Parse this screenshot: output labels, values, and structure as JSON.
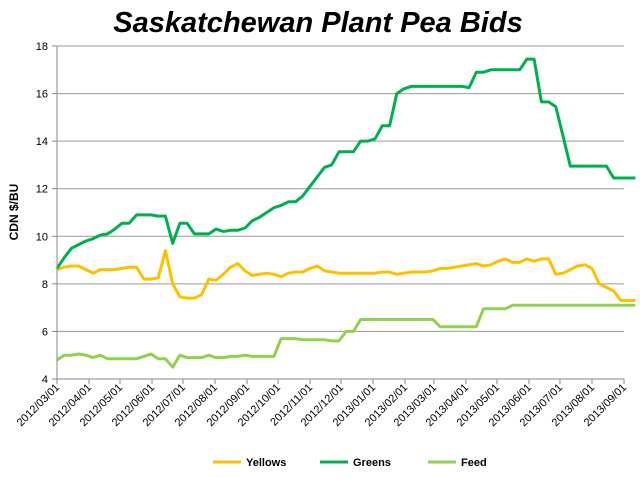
{
  "chart_data": {
    "type": "line",
    "title": "Saskatchewan Plant Pea Bids",
    "xlabel": "",
    "ylabel": "CDN $/BU",
    "ylim": [
      4,
      18
    ],
    "yticks": [
      "4",
      "6",
      "8",
      "10",
      "12",
      "14",
      "16",
      "18"
    ],
    "xticks": [
      "2012/03/01",
      "2012/04/01",
      "2012/05/01",
      "2012/06/01",
      "2012/07/01",
      "2012/08/01",
      "2012/09/01",
      "2012/10/01",
      "2012/11/01",
      "2012/12/01",
      "2013/01/01",
      "2013/02/01",
      "2013/03/01",
      "2013/04/01",
      "2013/05/01",
      "2013/06/01",
      "2013/07/01",
      "2013/08/01",
      "2013/09/01"
    ],
    "grid": "horizontal",
    "legend_position": "bottom",
    "series": [
      {
        "name": "Yellows",
        "color": "#FFC000",
        "points": [
          [
            "2012/03/01",
            8.6
          ],
          [
            "2012/03/08",
            8.7
          ],
          [
            "2012/03/15",
            8.75
          ],
          [
            "2012/03/22",
            8.75
          ],
          [
            "2012/03/29",
            8.6
          ],
          [
            "2012/04/05",
            8.45
          ],
          [
            "2012/04/12",
            8.6
          ],
          [
            "2012/04/19",
            8.6
          ],
          [
            "2012/04/26",
            8.6
          ],
          [
            "2012/05/03",
            8.65
          ],
          [
            "2012/05/10",
            8.7
          ],
          [
            "2012/05/17",
            8.7
          ],
          [
            "2012/05/24",
            8.2
          ],
          [
            "2012/05/31",
            8.2
          ],
          [
            "2012/06/07",
            8.25
          ],
          [
            "2012/06/14",
            9.4
          ],
          [
            "2012/06/21",
            8.0
          ],
          [
            "2012/06/28",
            7.45
          ],
          [
            "2012/07/05",
            7.4
          ],
          [
            "2012/07/12",
            7.4
          ],
          [
            "2012/07/19",
            7.55
          ],
          [
            "2012/07/26",
            8.2
          ],
          [
            "2012/08/02",
            8.15
          ],
          [
            "2012/08/09",
            8.4
          ],
          [
            "2012/08/16",
            8.7
          ],
          [
            "2012/08/23",
            8.85
          ],
          [
            "2012/08/30",
            8.55
          ],
          [
            "2012/09/06",
            8.35
          ],
          [
            "2012/09/13",
            8.4
          ],
          [
            "2012/09/20",
            8.45
          ],
          [
            "2012/09/27",
            8.4
          ],
          [
            "2012/10/04",
            8.3
          ],
          [
            "2012/10/11",
            8.45
          ],
          [
            "2012/10/18",
            8.5
          ],
          [
            "2012/10/25",
            8.5
          ],
          [
            "2012/11/01",
            8.65
          ],
          [
            "2012/11/08",
            8.75
          ],
          [
            "2012/11/15",
            8.55
          ],
          [
            "2012/11/22",
            8.5
          ],
          [
            "2012/11/29",
            8.45
          ],
          [
            "2012/12/06",
            8.45
          ],
          [
            "2012/12/13",
            8.45
          ],
          [
            "2012/12/20",
            8.45
          ],
          [
            "2012/12/27",
            8.45
          ],
          [
            "2013/01/03",
            8.45
          ],
          [
            "2013/01/10",
            8.5
          ],
          [
            "2013/01/17",
            8.5
          ],
          [
            "2013/01/24",
            8.4
          ],
          [
            "2013/01/31",
            8.45
          ],
          [
            "2013/02/07",
            8.5
          ],
          [
            "2013/02/14",
            8.5
          ],
          [
            "2013/02/21",
            8.5
          ],
          [
            "2013/02/28",
            8.55
          ],
          [
            "2013/03/07",
            8.65
          ],
          [
            "2013/03/14",
            8.65
          ],
          [
            "2013/03/21",
            8.7
          ],
          [
            "2013/03/28",
            8.75
          ],
          [
            "2013/04/04",
            8.8
          ],
          [
            "2013/04/11",
            8.85
          ],
          [
            "2013/04/18",
            8.75
          ],
          [
            "2013/04/25",
            8.8
          ],
          [
            "2013/05/02",
            8.95
          ],
          [
            "2013/05/09",
            9.05
          ],
          [
            "2013/05/16",
            8.9
          ],
          [
            "2013/05/23",
            8.9
          ],
          [
            "2013/05/30",
            9.05
          ],
          [
            "2013/06/06",
            8.95
          ],
          [
            "2013/06/13",
            9.05
          ],
          [
            "2013/06/20",
            9.05
          ],
          [
            "2013/06/27",
            8.4
          ],
          [
            "2013/07/04",
            8.45
          ],
          [
            "2013/07/11",
            8.6
          ],
          [
            "2013/07/18",
            8.75
          ],
          [
            "2013/07/25",
            8.8
          ],
          [
            "2013/08/01",
            8.65
          ],
          [
            "2013/08/08",
            8.0
          ],
          [
            "2013/08/15",
            7.85
          ],
          [
            "2013/08/22",
            7.7
          ],
          [
            "2013/08/29",
            7.3
          ],
          [
            "2013/09/05",
            7.3
          ],
          [
            "2013/09/12",
            7.3
          ]
        ]
      },
      {
        "name": "Greens",
        "color": "#00B050",
        "points": [
          [
            "2012/03/01",
            8.65
          ],
          [
            "2012/03/08",
            9.1
          ],
          [
            "2012/03/15",
            9.5
          ],
          [
            "2012/03/22",
            9.65
          ],
          [
            "2012/03/29",
            9.8
          ],
          [
            "2012/04/05",
            9.9
          ],
          [
            "2012/04/12",
            10.05
          ],
          [
            "2012/04/19",
            10.1
          ],
          [
            "2012/04/26",
            10.3
          ],
          [
            "2012/05/03",
            10.55
          ],
          [
            "2012/05/10",
            10.55
          ],
          [
            "2012/05/17",
            10.9
          ],
          [
            "2012/05/24",
            10.9
          ],
          [
            "2012/05/31",
            10.9
          ],
          [
            "2012/06/07",
            10.85
          ],
          [
            "2012/06/14",
            10.85
          ],
          [
            "2012/06/21",
            9.7
          ],
          [
            "2012/06/28",
            10.55
          ],
          [
            "2012/07/05",
            10.55
          ],
          [
            "2012/07/12",
            10.1
          ],
          [
            "2012/07/19",
            10.1
          ],
          [
            "2012/07/26",
            10.1
          ],
          [
            "2012/08/02",
            10.3
          ],
          [
            "2012/08/09",
            10.2
          ],
          [
            "2012/08/16",
            10.25
          ],
          [
            "2012/08/23",
            10.25
          ],
          [
            "2012/08/30",
            10.35
          ],
          [
            "2012/09/06",
            10.65
          ],
          [
            "2012/09/13",
            10.8
          ],
          [
            "2012/09/20",
            11.0
          ],
          [
            "2012/09/27",
            11.2
          ],
          [
            "2012/10/04",
            11.3
          ],
          [
            "2012/10/11",
            11.45
          ],
          [
            "2012/10/18",
            11.45
          ],
          [
            "2012/10/25",
            11.7
          ],
          [
            "2012/11/01",
            12.1
          ],
          [
            "2012/11/08",
            12.5
          ],
          [
            "2012/11/15",
            12.9
          ],
          [
            "2012/11/22",
            13.0
          ],
          [
            "2012/11/29",
            13.55
          ],
          [
            "2012/12/06",
            13.55
          ],
          [
            "2012/12/13",
            13.55
          ],
          [
            "2012/12/20",
            14.0
          ],
          [
            "2012/12/27",
            14.0
          ],
          [
            "2013/01/03",
            14.1
          ],
          [
            "2013/01/10",
            14.65
          ],
          [
            "2013/01/17",
            14.65
          ],
          [
            "2013/01/24",
            16.0
          ],
          [
            "2013/01/31",
            16.2
          ],
          [
            "2013/02/07",
            16.3
          ],
          [
            "2013/02/14",
            16.3
          ],
          [
            "2013/02/21",
            16.3
          ],
          [
            "2013/02/28",
            16.3
          ],
          [
            "2013/03/07",
            16.3
          ],
          [
            "2013/03/14",
            16.3
          ],
          [
            "2013/03/21",
            16.3
          ],
          [
            "2013/03/28",
            16.3
          ],
          [
            "2013/04/04",
            16.25
          ],
          [
            "2013/04/11",
            16.9
          ],
          [
            "2013/04/18",
            16.9
          ],
          [
            "2013/04/25",
            17.0
          ],
          [
            "2013/05/02",
            17.0
          ],
          [
            "2013/05/09",
            17.0
          ],
          [
            "2013/05/16",
            17.0
          ],
          [
            "2013/05/23",
            17.0
          ],
          [
            "2013/05/30",
            17.45
          ],
          [
            "2013/06/06",
            17.45
          ],
          [
            "2013/06/13",
            15.65
          ],
          [
            "2013/06/20",
            15.65
          ],
          [
            "2013/06/27",
            15.45
          ],
          [
            "2013/07/04",
            14.2
          ],
          [
            "2013/07/11",
            12.95
          ],
          [
            "2013/07/18",
            12.95
          ],
          [
            "2013/07/25",
            12.95
          ],
          [
            "2013/08/01",
            12.95
          ],
          [
            "2013/08/08",
            12.95
          ],
          [
            "2013/08/15",
            12.95
          ],
          [
            "2013/08/22",
            12.45
          ],
          [
            "2013/08/29",
            12.45
          ],
          [
            "2013/09/05",
            12.45
          ],
          [
            "2013/09/12",
            12.45
          ]
        ]
      },
      {
        "name": "Feed",
        "color": "#92D050",
        "points": [
          [
            "2012/03/01",
            4.8
          ],
          [
            "2012/03/08",
            5.0
          ],
          [
            "2012/03/15",
            5.0
          ],
          [
            "2012/03/22",
            5.05
          ],
          [
            "2012/03/29",
            5.0
          ],
          [
            "2012/04/05",
            4.9
          ],
          [
            "2012/04/12",
            5.0
          ],
          [
            "2012/04/19",
            4.85
          ],
          [
            "2012/04/26",
            4.85
          ],
          [
            "2012/05/03",
            4.85
          ],
          [
            "2012/05/10",
            4.85
          ],
          [
            "2012/05/17",
            4.85
          ],
          [
            "2012/05/24",
            4.95
          ],
          [
            "2012/05/31",
            5.05
          ],
          [
            "2012/06/07",
            4.85
          ],
          [
            "2012/06/14",
            4.85
          ],
          [
            "2012/06/21",
            4.5
          ],
          [
            "2012/06/28",
            5.0
          ],
          [
            "2012/07/05",
            4.9
          ],
          [
            "2012/07/12",
            4.9
          ],
          [
            "2012/07/19",
            4.9
          ],
          [
            "2012/07/26",
            5.0
          ],
          [
            "2012/08/02",
            4.9
          ],
          [
            "2012/08/09",
            4.9
          ],
          [
            "2012/08/16",
            4.95
          ],
          [
            "2012/08/23",
            4.95
          ],
          [
            "2012/08/30",
            5.0
          ],
          [
            "2012/09/06",
            4.95
          ],
          [
            "2012/09/13",
            4.95
          ],
          [
            "2012/09/20",
            4.95
          ],
          [
            "2012/09/27",
            4.95
          ],
          [
            "2012/10/04",
            5.7
          ],
          [
            "2012/10/11",
            5.7
          ],
          [
            "2012/10/18",
            5.7
          ],
          [
            "2012/10/25",
            5.65
          ],
          [
            "2012/11/01",
            5.65
          ],
          [
            "2012/11/08",
            5.65
          ],
          [
            "2012/11/15",
            5.65
          ],
          [
            "2012/11/22",
            5.6
          ],
          [
            "2012/11/29",
            5.6
          ],
          [
            "2012/12/06",
            6.0
          ],
          [
            "2012/12/13",
            6.0
          ],
          [
            "2012/12/20",
            6.5
          ],
          [
            "2012/12/27",
            6.5
          ],
          [
            "2013/01/03",
            6.5
          ],
          [
            "2013/01/10",
            6.5
          ],
          [
            "2013/01/17",
            6.5
          ],
          [
            "2013/01/24",
            6.5
          ],
          [
            "2013/01/31",
            6.5
          ],
          [
            "2013/02/07",
            6.5
          ],
          [
            "2013/02/14",
            6.5
          ],
          [
            "2013/02/21",
            6.5
          ],
          [
            "2013/02/28",
            6.5
          ],
          [
            "2013/03/07",
            6.2
          ],
          [
            "2013/03/14",
            6.2
          ],
          [
            "2013/03/21",
            6.2
          ],
          [
            "2013/03/28",
            6.2
          ],
          [
            "2013/04/04",
            6.2
          ],
          [
            "2013/04/11",
            6.2
          ],
          [
            "2013/04/18",
            6.95
          ],
          [
            "2013/04/25",
            6.95
          ],
          [
            "2013/05/02",
            6.95
          ],
          [
            "2013/05/09",
            6.95
          ],
          [
            "2013/05/16",
            7.1
          ],
          [
            "2013/05/23",
            7.1
          ],
          [
            "2013/05/30",
            7.1
          ],
          [
            "2013/06/06",
            7.1
          ],
          [
            "2013/06/13",
            7.1
          ],
          [
            "2013/06/20",
            7.1
          ],
          [
            "2013/06/27",
            7.1
          ],
          [
            "2013/07/04",
            7.1
          ],
          [
            "2013/07/11",
            7.1
          ],
          [
            "2013/07/18",
            7.1
          ],
          [
            "2013/07/25",
            7.1
          ],
          [
            "2013/08/01",
            7.1
          ],
          [
            "2013/08/08",
            7.1
          ],
          [
            "2013/08/15",
            7.1
          ],
          [
            "2013/08/22",
            7.1
          ],
          [
            "2013/08/29",
            7.1
          ],
          [
            "2013/09/05",
            7.1
          ],
          [
            "2013/09/12",
            7.1
          ]
        ]
      }
    ]
  }
}
